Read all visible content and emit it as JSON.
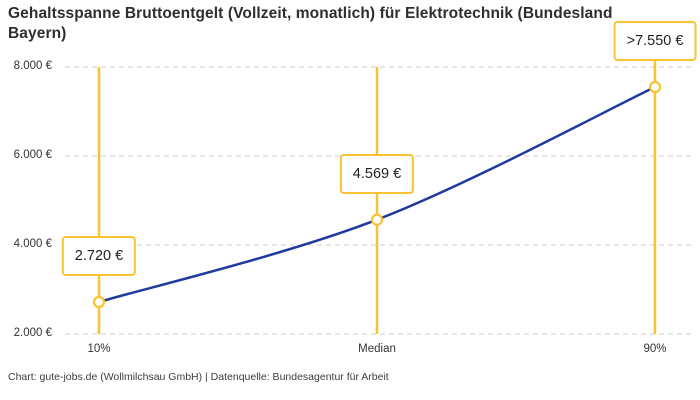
{
  "chart_data": {
    "type": "line",
    "title": "Gehaltsspanne Bruttoentgelt (Vollzeit, monatlich) für Elektrotechnik (Bundesland Bayern)",
    "categories": [
      "10%",
      "Median",
      "90%"
    ],
    "values": [
      2720,
      4569,
      7550
    ],
    "point_labels": [
      "2.720 €",
      "4.569 €",
      ">7.550 €"
    ],
    "ylim": [
      2000,
      8000
    ],
    "y_ticks": [
      {
        "value": 8000,
        "label": "8.000 €"
      },
      {
        "value": 6000,
        "label": "6.000 €"
      },
      {
        "value": 4000,
        "label": "4.000 €"
      },
      {
        "value": 2000,
        "label": "2.000 €"
      }
    ],
    "xlabel": "",
    "ylabel": "",
    "grid": "horizontal-dashed",
    "legend": "none",
    "source": "Chart: gute-jobs.de (Wollmilchsau GmbH) | Datenquelle: Bundesagentur für Arbeit",
    "colors": {
      "line": "#1f3a9e",
      "accent": "#f8c231",
      "grid": "#cccccc",
      "marker_fill": "#ffffff",
      "title_text": "#2e2e2e",
      "axis_text": "#333333",
      "footer_text": "#3d3d3d"
    }
  }
}
